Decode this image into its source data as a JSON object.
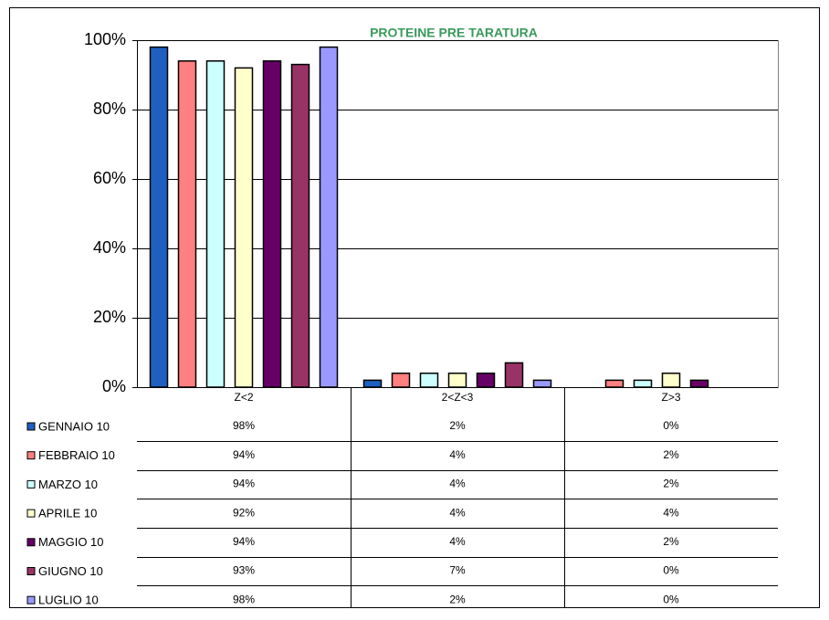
{
  "chart_data": {
    "type": "bar",
    "title": "PROTEINE PRE TARATURA",
    "categories": [
      "Z<2",
      "2<Z<3",
      "Z>3"
    ],
    "series": [
      {
        "name": "GENNAIO 10",
        "color": "#1f5fbf",
        "values": [
          98,
          2,
          0
        ],
        "value_labels": [
          "98%",
          "2%",
          "0%"
        ]
      },
      {
        "name": "FEBBRAIO 10",
        "color": "#ff8080",
        "values": [
          94,
          4,
          2
        ],
        "value_labels": [
          "94%",
          "4%",
          "2%"
        ]
      },
      {
        "name": "MARZO 10",
        "color": "#ccffff",
        "values": [
          94,
          4,
          2
        ],
        "value_labels": [
          "94%",
          "4%",
          "2%"
        ]
      },
      {
        "name": "APRILE 10",
        "color": "#ffffcc",
        "values": [
          92,
          4,
          4
        ],
        "value_labels": [
          "92%",
          "4%",
          "4%"
        ]
      },
      {
        "name": "MAGGIO 10",
        "color": "#660066",
        "values": [
          94,
          4,
          2
        ],
        "value_labels": [
          "94%",
          "4%",
          "2%"
        ]
      },
      {
        "name": "GIUGNO 10",
        "color": "#993366",
        "values": [
          93,
          7,
          0
        ],
        "value_labels": [
          "93%",
          "7%",
          "0%"
        ]
      },
      {
        "name": "LUGLIO 10",
        "color": "#9999ff",
        "values": [
          98,
          2,
          0
        ],
        "value_labels": [
          "98%",
          "2%",
          "0%"
        ]
      }
    ],
    "ylim": [
      0,
      100
    ],
    "yticks": [
      {
        "value": 0,
        "label": "0%"
      },
      {
        "value": 20,
        "label": "20%"
      },
      {
        "value": 40,
        "label": "40%"
      },
      {
        "value": 60,
        "label": "60%"
      },
      {
        "value": 80,
        "label": "80%"
      },
      {
        "value": 100,
        "label": "100%"
      }
    ],
    "grid": true
  }
}
